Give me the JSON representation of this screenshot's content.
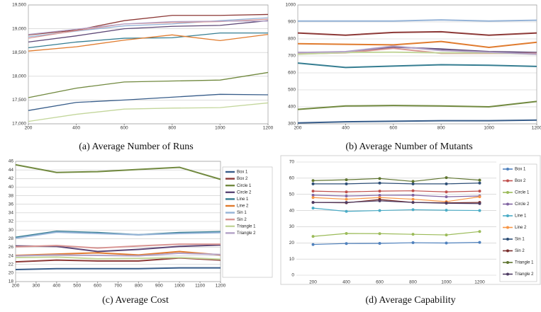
{
  "chart_data": [
    {
      "type": "line",
      "title": "(a) Average Number of Runs",
      "grid": true,
      "x": [
        200,
        400,
        600,
        800,
        1000,
        1200
      ],
      "xlim": [
        200,
        1200
      ],
      "xticks": [
        200,
        400,
        600,
        800,
        1000,
        1200
      ],
      "ylim": [
        17000,
        19500
      ],
      "yticks": [
        {
          "value": 17000,
          "label": "17,000"
        },
        {
          "value": 17500,
          "label": "17,500"
        },
        {
          "value": 18000,
          "label": "18,000"
        },
        {
          "value": 18500,
          "label": "18,500"
        },
        {
          "value": 19000,
          "label": "19,000"
        },
        {
          "value": 19500,
          "label": "19,500"
        }
      ],
      "series": [
        {
          "name": "Box 1",
          "color": "#385d8a",
          "values": [
            17280,
            17450,
            17500,
            17560,
            17620,
            17610
          ]
        },
        {
          "name": "Box 2",
          "color": "#8c3836",
          "values": [
            18870,
            18970,
            19170,
            19280,
            19280,
            19300
          ]
        },
        {
          "name": "Circle 1",
          "color": "#71893f",
          "values": [
            17550,
            17750,
            17880,
            17900,
            17920,
            18080
          ]
        },
        {
          "name": "Circle 2",
          "color": "#5c4776",
          "values": [
            18720,
            18850,
            19000,
            19050,
            19070,
            19170
          ]
        },
        {
          "name": "Line 1",
          "color": "#357d91",
          "values": [
            18600,
            18720,
            18800,
            18810,
            18910,
            18910
          ]
        },
        {
          "name": "Line 2",
          "color": "#e07b2e",
          "values": [
            18530,
            18620,
            18760,
            18870,
            18750,
            18880
          ]
        },
        {
          "name": "Sin 1",
          "color": "#95b3d7",
          "values": [
            18830,
            18950,
            19060,
            19100,
            19170,
            19230
          ]
        },
        {
          "name": "Sin 2",
          "color": "#d99694",
          "values": [
            18800,
            18960,
            19100,
            19130,
            19150,
            19200
          ]
        },
        {
          "name": "Triangle 1",
          "color": "#c3d69b",
          "values": [
            17050,
            17200,
            17310,
            17330,
            17340,
            17440
          ]
        },
        {
          "name": "Triangle 2",
          "color": "#b3a2c7",
          "values": [
            18880,
            18990,
            19100,
            19150,
            19160,
            19160
          ]
        }
      ]
    },
    {
      "type": "line",
      "title": "(b) Average Number of Mutants",
      "grid": true,
      "x": [
        200,
        400,
        600,
        800,
        1000,
        1200
      ],
      "xlim": [
        200,
        1200
      ],
      "xticks": [
        200,
        400,
        600,
        800,
        1000,
        1200
      ],
      "ylim": [
        300,
        1000
      ],
      "yticks": [
        300,
        400,
        500,
        600,
        700,
        800,
        900,
        1000
      ],
      "series": [
        {
          "name": "Box 1",
          "color": "#385d8a",
          "values": [
            305,
            312,
            315,
            318,
            318,
            322
          ]
        },
        {
          "name": "Box 2",
          "color": "#8c3836",
          "values": [
            835,
            822,
            838,
            842,
            822,
            835
          ]
        },
        {
          "name": "Circle 1",
          "color": "#71893f",
          "values": [
            385,
            405,
            408,
            405,
            400,
            432
          ]
        },
        {
          "name": "Circle 2",
          "color": "#5c4776",
          "values": [
            720,
            722,
            752,
            740,
            725,
            720
          ]
        },
        {
          "name": "Line 1",
          "color": "#357d91",
          "values": [
            658,
            632,
            640,
            648,
            645,
            638
          ]
        },
        {
          "name": "Line 2",
          "color": "#e07b2e",
          "values": [
            772,
            768,
            765,
            785,
            750,
            780
          ]
        },
        {
          "name": "Sin 1",
          "color": "#95b3d7",
          "values": [
            905,
            905,
            905,
            912,
            905,
            910
          ]
        },
        {
          "name": "Sin 2",
          "color": "#d99694",
          "values": [
            712,
            718,
            745,
            715,
            715,
            715
          ]
        },
        {
          "name": "Triangle 1",
          "color": "#c3d69b",
          "values": [
            710,
            720,
            722,
            718,
            718,
            710
          ]
        },
        {
          "name": "Triangle 2",
          "color": "#b3a2c7",
          "values": [
            720,
            725,
            758,
            732,
            722,
            710
          ]
        }
      ]
    },
    {
      "type": "line",
      "title": "(c) Average Cost",
      "grid": true,
      "legend": "right",
      "x": [
        200,
        400,
        600,
        800,
        1000,
        1200
      ],
      "xlim": [
        200,
        1200
      ],
      "xticks": [
        200,
        300,
        400,
        500,
        600,
        700,
        800,
        900,
        1000,
        1100,
        1200
      ],
      "ylim": [
        18,
        46
      ],
      "yticks": [
        18,
        20,
        22,
        24,
        26,
        28,
        30,
        32,
        34,
        36,
        38,
        40,
        42,
        44,
        46
      ],
      "series": [
        {
          "name": "Box 1",
          "color": "#385d8a",
          "values": [
            20.8,
            21,
            21,
            21,
            21.2,
            21.2
          ]
        },
        {
          "name": "Box 2",
          "color": "#8c3836",
          "values": [
            22.6,
            23,
            22.8,
            22.8,
            23.5,
            23
          ]
        },
        {
          "name": "Circle 1",
          "color": "#71893f",
          "values": [
            45.2,
            43.4,
            43.6,
            44.1,
            44.6,
            41.8
          ]
        },
        {
          "name": "Circle 2",
          "color": "#5c4776",
          "values": [
            26.3,
            26.2,
            25,
            25.5,
            26.2,
            26.5
          ]
        },
        {
          "name": "Line 1",
          "color": "#357d91",
          "values": [
            28.3,
            29.7,
            29.4,
            28.9,
            29.4,
            29.6
          ]
        },
        {
          "name": "Line 2",
          "color": "#e07b2e",
          "values": [
            24.1,
            24.4,
            24.7,
            24.2,
            25,
            24.2
          ]
        },
        {
          "name": "Sin 1",
          "color": "#95b3d7",
          "values": [
            28.1,
            29.5,
            29.2,
            28.9,
            29.2,
            29.4
          ]
        },
        {
          "name": "Sin 2",
          "color": "#d99694",
          "values": [
            26.1,
            26.4,
            25.8,
            26.3,
            26.7,
            26.7
          ]
        },
        {
          "name": "Triangle 1",
          "color": "#c3d69b",
          "values": [
            23.6,
            23.7,
            23.3,
            23.4,
            23.6,
            23.2
          ]
        },
        {
          "name": "Triangle 2",
          "color": "#b3a2c7",
          "values": [
            24,
            24.2,
            24.1,
            24,
            24.6,
            24.3
          ]
        }
      ]
    },
    {
      "type": "line",
      "title": "(d) Average Capability",
      "grid": true,
      "legend": "right",
      "markers": true,
      "categories": [
        "200",
        "400",
        "600",
        "800",
        "1000",
        "1200"
      ],
      "ylim": [
        0,
        70
      ],
      "yticks": [
        0,
        10,
        20,
        30,
        40,
        50,
        60,
        70
      ],
      "series": [
        {
          "name": "Box 1",
          "color": "#4f81bd",
          "values": [
            19,
            19.6,
            19.7,
            20.1,
            19.9,
            20.3
          ]
        },
        {
          "name": "Box 2",
          "color": "#c0504d",
          "values": [
            52,
            51.5,
            52,
            52.2,
            51.5,
            52
          ]
        },
        {
          "name": "Circle 1",
          "color": "#9bbb59",
          "values": [
            24,
            25.8,
            25.7,
            25.3,
            24.9,
            27
          ]
        },
        {
          "name": "Circle 2",
          "color": "#8064a2",
          "values": [
            49.5,
            49,
            49.4,
            49.5,
            48.5,
            49
          ]
        },
        {
          "name": "Line 1",
          "color": "#4bacc6",
          "values": [
            41.5,
            39.5,
            40,
            40.5,
            40.2,
            40
          ]
        },
        {
          "name": "Line 2",
          "color": "#f79646",
          "values": [
            48,
            47,
            48,
            47,
            45.5,
            48.5
          ]
        },
        {
          "name": "Sin 1",
          "color": "#2c4d75",
          "values": [
            56.5,
            56.5,
            57,
            56.5,
            56.5,
            57
          ]
        },
        {
          "name": "Sin 2",
          "color": "#772c2a",
          "values": [
            45,
            44.8,
            46.8,
            45,
            44.8,
            45
          ]
        },
        {
          "name": "Triangle 1",
          "color": "#5f7530",
          "values": [
            58.5,
            59,
            59.8,
            58,
            60.3,
            58.8
          ]
        },
        {
          "name": "Triangle 2",
          "color": "#4d3b62",
          "values": [
            45,
            45,
            46,
            45,
            44.5,
            44.3
          ]
        }
      ]
    }
  ]
}
